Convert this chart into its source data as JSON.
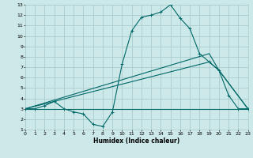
{
  "xlabel": "Humidex (Indice chaleur)",
  "xlim": [
    0,
    23
  ],
  "ylim": [
    1,
    13
  ],
  "xticks": [
    0,
    1,
    2,
    3,
    4,
    5,
    6,
    7,
    8,
    9,
    10,
    11,
    12,
    13,
    14,
    15,
    16,
    17,
    18,
    19,
    20,
    21,
    22,
    23
  ],
  "yticks": [
    1,
    2,
    3,
    4,
    5,
    6,
    7,
    8,
    9,
    10,
    11,
    12,
    13
  ],
  "bg_color": "#cde8e8",
  "grid_color": "#aacccc",
  "line_color": "#006868",
  "line_main": {
    "x": [
      0,
      1,
      2,
      3,
      4,
      5,
      6,
      7,
      8,
      9,
      10,
      11,
      12,
      13,
      14,
      15,
      16,
      17,
      18,
      19,
      20,
      21,
      22,
      23
    ],
    "y": [
      3.0,
      3.0,
      3.3,
      3.7,
      3.0,
      2.7,
      2.5,
      1.5,
      1.3,
      2.7,
      7.3,
      10.5,
      11.8,
      12.0,
      12.3,
      13.0,
      11.7,
      10.7,
      8.3,
      7.5,
      6.7,
      4.3,
      3.0,
      3.0
    ]
  },
  "line2": {
    "x": [
      0,
      23
    ],
    "y": [
      3.0,
      3.0
    ]
  },
  "line3": {
    "x": [
      0,
      19,
      20,
      23
    ],
    "y": [
      3.0,
      7.5,
      6.7,
      3.0
    ]
  },
  "line4": {
    "x": [
      0,
      19,
      20,
      23
    ],
    "y": [
      3.0,
      8.3,
      6.7,
      3.0
    ]
  }
}
